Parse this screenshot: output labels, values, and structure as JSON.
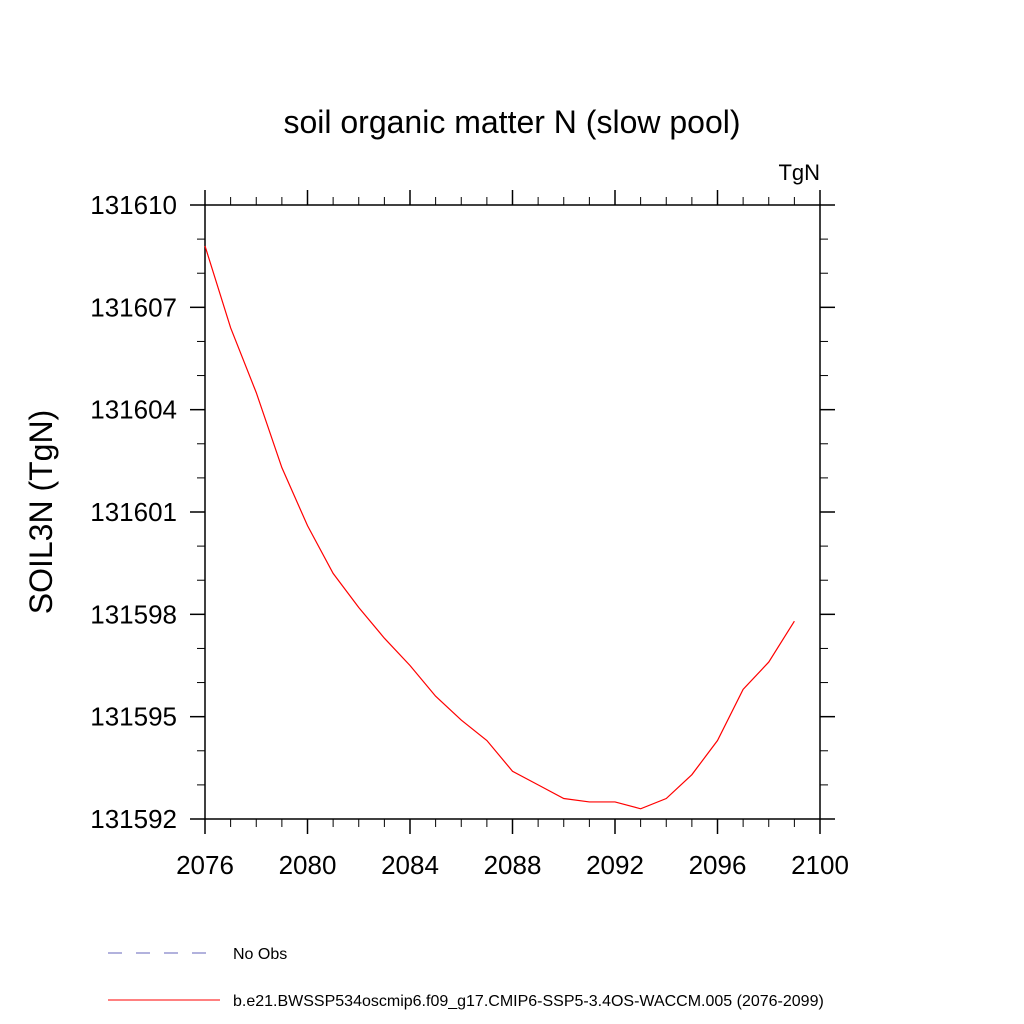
{
  "chart_data": {
    "type": "line",
    "title": "soil organic matter N (slow pool)",
    "units": "TgN",
    "ylabel": "SOIL3N  (TgN)",
    "xlabel": "",
    "xlim": [
      2076,
      2100
    ],
    "ylim": [
      131592,
      131610
    ],
    "xticks": [
      2076,
      2080,
      2084,
      2088,
      2092,
      2096,
      2100
    ],
    "xtick_labels": [
      "2076",
      "2080",
      "2084",
      "2088",
      "2092",
      "2096",
      "2100"
    ],
    "yticks": [
      131592,
      131595,
      131598,
      131601,
      131604,
      131607,
      131610
    ],
    "ytick_labels": [
      "131592",
      "131595",
      "131598",
      "131601",
      "131604",
      "131607",
      "131610"
    ],
    "grid": false,
    "series": [
      {
        "name": "b.e21.BWSSP534oscmip6.f09_g17.CMIP6-SSP5-3.4OS-WACCM.005 (2076-2099)",
        "color": "#ff0000",
        "style": "solid",
        "x": [
          2076,
          2077,
          2078,
          2079,
          2080,
          2081,
          2082,
          2083,
          2084,
          2085,
          2086,
          2087,
          2088,
          2089,
          2090,
          2091,
          2092,
          2093,
          2094,
          2095,
          2096,
          2097,
          2098,
          2099
        ],
        "values": [
          131608.8,
          131606.4,
          131604.5,
          131602.3,
          131600.6,
          131599.2,
          131598.2,
          131597.3,
          131596.5,
          131595.6,
          131594.9,
          131594.3,
          131593.4,
          131593.0,
          131592.6,
          131592.5,
          131592.5,
          131592.3,
          131592.6,
          131593.3,
          131594.3,
          131595.8,
          131596.6,
          131597.8
        ]
      }
    ],
    "legend": [
      {
        "label": "No Obs",
        "color": "#6666bb",
        "style": "dashed"
      },
      {
        "label": "b.e21.BWSSP534oscmip6.f09_g17.CMIP6-SSP5-3.4OS-WACCM.005 (2076-2099)",
        "color": "#ff0000",
        "style": "solid"
      }
    ],
    "legend_position": "bottom-left"
  }
}
